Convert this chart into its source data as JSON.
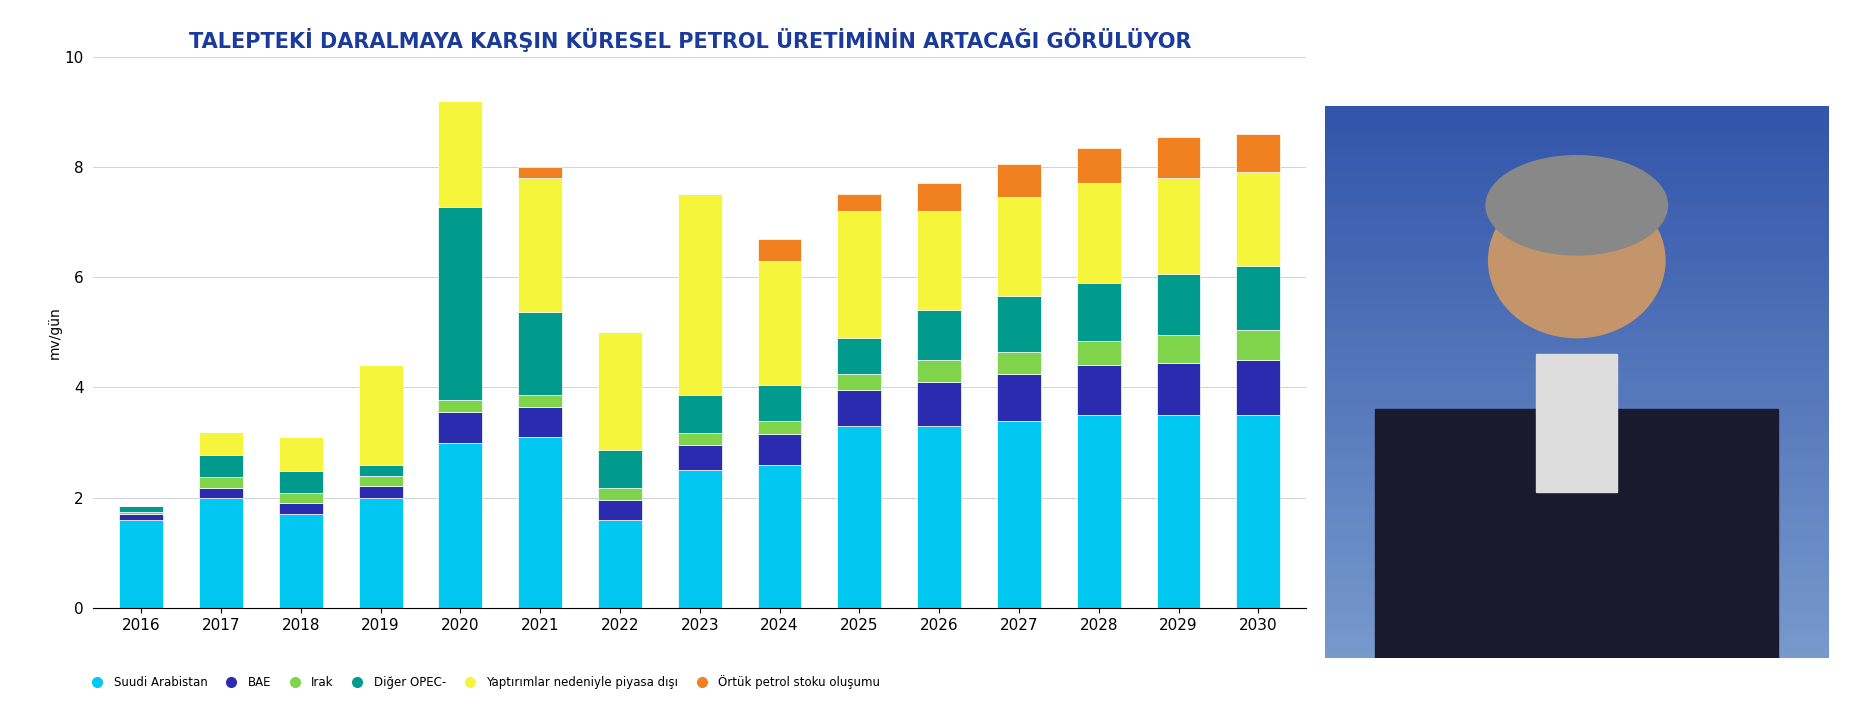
{
  "title": "TALEPTEKİ DARALMAYA KARŞIN KÜRESEL PETROL ÜRETİMİNİN ARTACAĞI GÖRÜLÜYOR",
  "ylabel": "mv/gün",
  "years": [
    2016,
    2017,
    2018,
    2019,
    2020,
    2021,
    2022,
    2023,
    2024,
    2025,
    2026,
    2027,
    2028,
    2029,
    2030
  ],
  "suudi": [
    1.6,
    2.0,
    1.7,
    2.0,
    3.0,
    3.1,
    1.6,
    2.5,
    2.6,
    3.3,
    3.3,
    3.4,
    3.5,
    3.5,
    3.5
  ],
  "bae": [
    0.1,
    0.18,
    0.2,
    0.22,
    0.55,
    0.55,
    0.35,
    0.45,
    0.55,
    0.65,
    0.8,
    0.85,
    0.9,
    0.95,
    1.0
  ],
  "irak": [
    0.05,
    0.2,
    0.18,
    0.18,
    0.22,
    0.22,
    0.22,
    0.22,
    0.25,
    0.3,
    0.4,
    0.4,
    0.45,
    0.5,
    0.55
  ],
  "diger_opec": [
    0.1,
    0.4,
    0.4,
    0.2,
    3.5,
    1.5,
    0.7,
    0.7,
    0.65,
    0.65,
    0.9,
    1.0,
    1.05,
    1.1,
    1.15
  ],
  "yaptir": [
    0.0,
    0.42,
    0.62,
    1.8,
    1.93,
    2.43,
    2.13,
    3.63,
    2.25,
    2.3,
    1.8,
    1.8,
    1.8,
    1.75,
    1.7
  ],
  "ortuk": [
    0.0,
    0.0,
    0.0,
    0.0,
    0.0,
    0.2,
    0.0,
    0.0,
    0.4,
    0.3,
    0.5,
    0.6,
    0.65,
    0.75,
    0.7
  ],
  "colors": {
    "suudi": "#00C8F0",
    "bae": "#2B2BB0",
    "irak": "#7FD44C",
    "diger_opec": "#009B8D",
    "yaptir": "#F5F53C",
    "ortuk": "#F08020"
  },
  "legend_labels": {
    "suudi": "Suudi Arabistan",
    "bae": "BAE",
    "irak": "Irak",
    "diger_opec": "Diğer OPEC-",
    "yaptir": "Yaptırımlar nedeniyle piyasa dışı",
    "ortuk": "Örtük petrol stoku oluşumu"
  },
  "ylim": [
    0,
    10
  ],
  "yticks": [
    0,
    2,
    4,
    6,
    8,
    10
  ],
  "background_color": "#FFFFFF",
  "title_color": "#1A3A9C",
  "title_fontsize": 15,
  "bar_width": 0.55,
  "photo_color": "#6688BB"
}
